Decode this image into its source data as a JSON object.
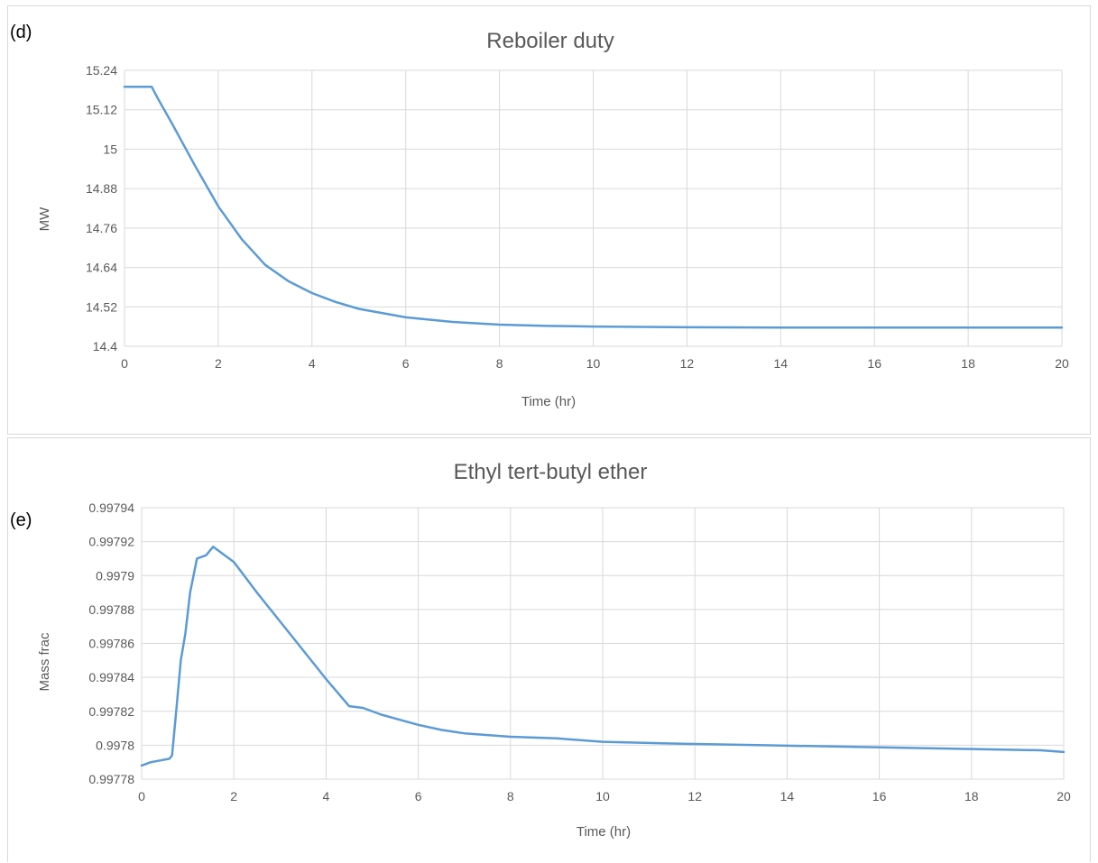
{
  "colors": {
    "series": "#5b9bd5",
    "grid": "#d9d9d9",
    "text": "#595959"
  },
  "chart_data": [
    {
      "type": "line",
      "panel_label": "(d)",
      "title": "Reboiler duty",
      "xlabel": "Time (hr)",
      "ylabel": "MW",
      "xlim": [
        0,
        20
      ],
      "ylim": [
        14.4,
        15.24
      ],
      "x_ticks": [
        0,
        2,
        4,
        6,
        8,
        10,
        12,
        14,
        16,
        18,
        20
      ],
      "y_ticks": [
        14.4,
        14.52,
        14.64,
        14.76,
        14.88,
        15,
        15.12,
        15.24
      ],
      "x_tick_labels": [
        "0",
        "2",
        "4",
        "6",
        "8",
        "10",
        "12",
        "14",
        "16",
        "18",
        "20"
      ],
      "y_tick_labels": [
        "14.4",
        "14.52",
        "14.64",
        "14.76",
        "14.88",
        "15",
        "15.12",
        "15.24"
      ],
      "grid": true,
      "legend": "none",
      "series": [
        {
          "x": [
            0,
            0.58,
            0.7,
            1,
            1.5,
            2,
            2.5,
            3,
            3.5,
            4,
            4.5,
            5,
            6,
            7,
            8,
            9,
            10,
            12,
            14,
            16,
            18,
            20
          ],
          "y": [
            15.19,
            15.19,
            15.157,
            15.082,
            14.951,
            14.826,
            14.726,
            14.648,
            14.598,
            14.562,
            14.535,
            14.514,
            14.488,
            14.474,
            14.466,
            14.462,
            14.46,
            14.458,
            14.457,
            14.457,
            14.457,
            14.457
          ]
        }
      ]
    },
    {
      "type": "line",
      "panel_label": "(e)",
      "title": "Ethyl tert-butyl ether",
      "xlabel": "Time (hr)",
      "ylabel": "Mass frac",
      "xlim": [
        0,
        20
      ],
      "ylim": [
        0.99778,
        0.99794
      ],
      "x_ticks": [
        0,
        2,
        4,
        6,
        8,
        10,
        12,
        14,
        16,
        18,
        20
      ],
      "y_ticks": [
        0.99778,
        0.9978,
        0.99782,
        0.99784,
        0.99786,
        0.99788,
        0.9979,
        0.99792,
        0.99794
      ],
      "x_tick_labels": [
        "0",
        "2",
        "4",
        "6",
        "8",
        "10",
        "12",
        "14",
        "16",
        "18",
        "20"
      ],
      "y_tick_labels": [
        "0.99778",
        "0.9978",
        "0.99782",
        "0.99784",
        "0.99786",
        "0.99788",
        "0.9979",
        "0.99792",
        "0.99794"
      ],
      "grid": true,
      "legend": "none",
      "series": [
        {
          "x": [
            0,
            0.2,
            0.4,
            0.6,
            0.66,
            0.75,
            0.85,
            0.95,
            1.05,
            1.2,
            1.4,
            1.55,
            1.8,
            2.0,
            2.5,
            3.0,
            3.5,
            4.0,
            4.5,
            4.8,
            5.2,
            5.6,
            6.0,
            6.5,
            7.0,
            7.5,
            8.0,
            9.0,
            10.0,
            11.5,
            13.5,
            15.5,
            17.5,
            19.5,
            20.0
          ],
          "y": [
            0.997788,
            0.99779,
            0.997791,
            0.997792,
            0.997794,
            0.99782,
            0.99785,
            0.997866,
            0.99789,
            0.99791,
            0.997912,
            0.997917,
            0.997912,
            0.997908,
            0.99789,
            0.997873,
            0.997856,
            0.997839,
            0.997823,
            0.997822,
            0.997818,
            0.997815,
            0.997812,
            0.997809,
            0.997807,
            0.997806,
            0.997805,
            0.997804,
            0.997802,
            0.997801,
            0.9978,
            0.997799,
            0.997798,
            0.997797,
            0.997796
          ]
        }
      ]
    }
  ]
}
